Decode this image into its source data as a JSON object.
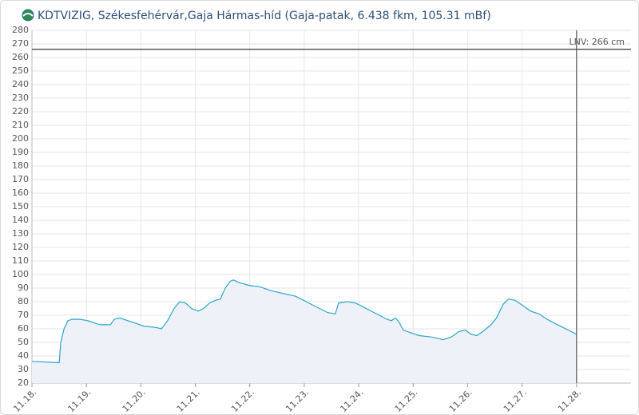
{
  "chart_data": {
    "type": "line",
    "title": "KDTVIZIG, Székesfehérvár,Gaja Hármas-híd (Gaja-patak, 6.438 fkm, 105.31 mBf)",
    "x": [
      18.0,
      18.5,
      18.53,
      18.59,
      18.66,
      18.73,
      18.88,
      19.03,
      19.17,
      19.25,
      19.44,
      19.51,
      19.61,
      19.76,
      19.91,
      20.05,
      20.27,
      20.38,
      20.49,
      20.61,
      20.71,
      20.82,
      20.93,
      21.05,
      21.15,
      21.26,
      21.37,
      21.46,
      21.55,
      21.64,
      21.7,
      21.81,
      21.99,
      22.18,
      22.4,
      22.62,
      22.84,
      22.99,
      23.13,
      23.28,
      23.43,
      23.57,
      23.63,
      23.79,
      23.94,
      24.09,
      24.23,
      24.38,
      24.52,
      24.6,
      24.67,
      24.74,
      24.82,
      24.96,
      25.11,
      25.33,
      25.45,
      25.55,
      25.7,
      25.84,
      25.96,
      26.06,
      26.17,
      26.28,
      26.43,
      26.53,
      26.65,
      26.75,
      26.87,
      27.02,
      27.16,
      27.31,
      27.46,
      27.6,
      27.75,
      27.9,
      28.0
    ],
    "series": [
      {
        "color": "#2aa6c8",
        "fill": "#eef1f7",
        "values": [
          36,
          35,
          50,
          60,
          66,
          67,
          67,
          66,
          64,
          63,
          63,
          67,
          68,
          66,
          64,
          62,
          61,
          60,
          66,
          75,
          80,
          79,
          75,
          73,
          75,
          79,
          81,
          82,
          90,
          95,
          96,
          94,
          92,
          91,
          88,
          86,
          84,
          81,
          78,
          75,
          72,
          71,
          79,
          80,
          79,
          76,
          73,
          70,
          67,
          66,
          68,
          65,
          59,
          57,
          55,
          54,
          53,
          52,
          54,
          58,
          59,
          56,
          55,
          58,
          63,
          68,
          78,
          82,
          81,
          77,
          73,
          71,
          67,
          64,
          61,
          58,
          56
        ]
      }
    ],
    "xlim": [
      18,
      29
    ],
    "xticks": [
      {
        "value": 18,
        "label": "11.18."
      },
      {
        "value": 19,
        "label": "11.19."
      },
      {
        "value": 20,
        "label": "11.20."
      },
      {
        "value": 21,
        "label": "11.21."
      },
      {
        "value": 22,
        "label": "11.22."
      },
      {
        "value": 23,
        "label": "11.23."
      },
      {
        "value": 24,
        "label": "11.24."
      },
      {
        "value": 25,
        "label": "11.25."
      },
      {
        "value": 26,
        "label": "11.26."
      },
      {
        "value": 27,
        "label": "11.27."
      },
      {
        "value": 28,
        "label": "11.28."
      }
    ],
    "ylim": [
      20,
      280
    ],
    "yticks": [
      20,
      30,
      40,
      50,
      60,
      70,
      80,
      90,
      100,
      110,
      120,
      130,
      140,
      150,
      160,
      170,
      180,
      190,
      200,
      210,
      220,
      230,
      240,
      250,
      260,
      270,
      280
    ],
    "grid": true,
    "reference_lines": [
      {
        "value": 266,
        "label": "LNV: 266 cm"
      }
    ],
    "vline_x": 28
  }
}
